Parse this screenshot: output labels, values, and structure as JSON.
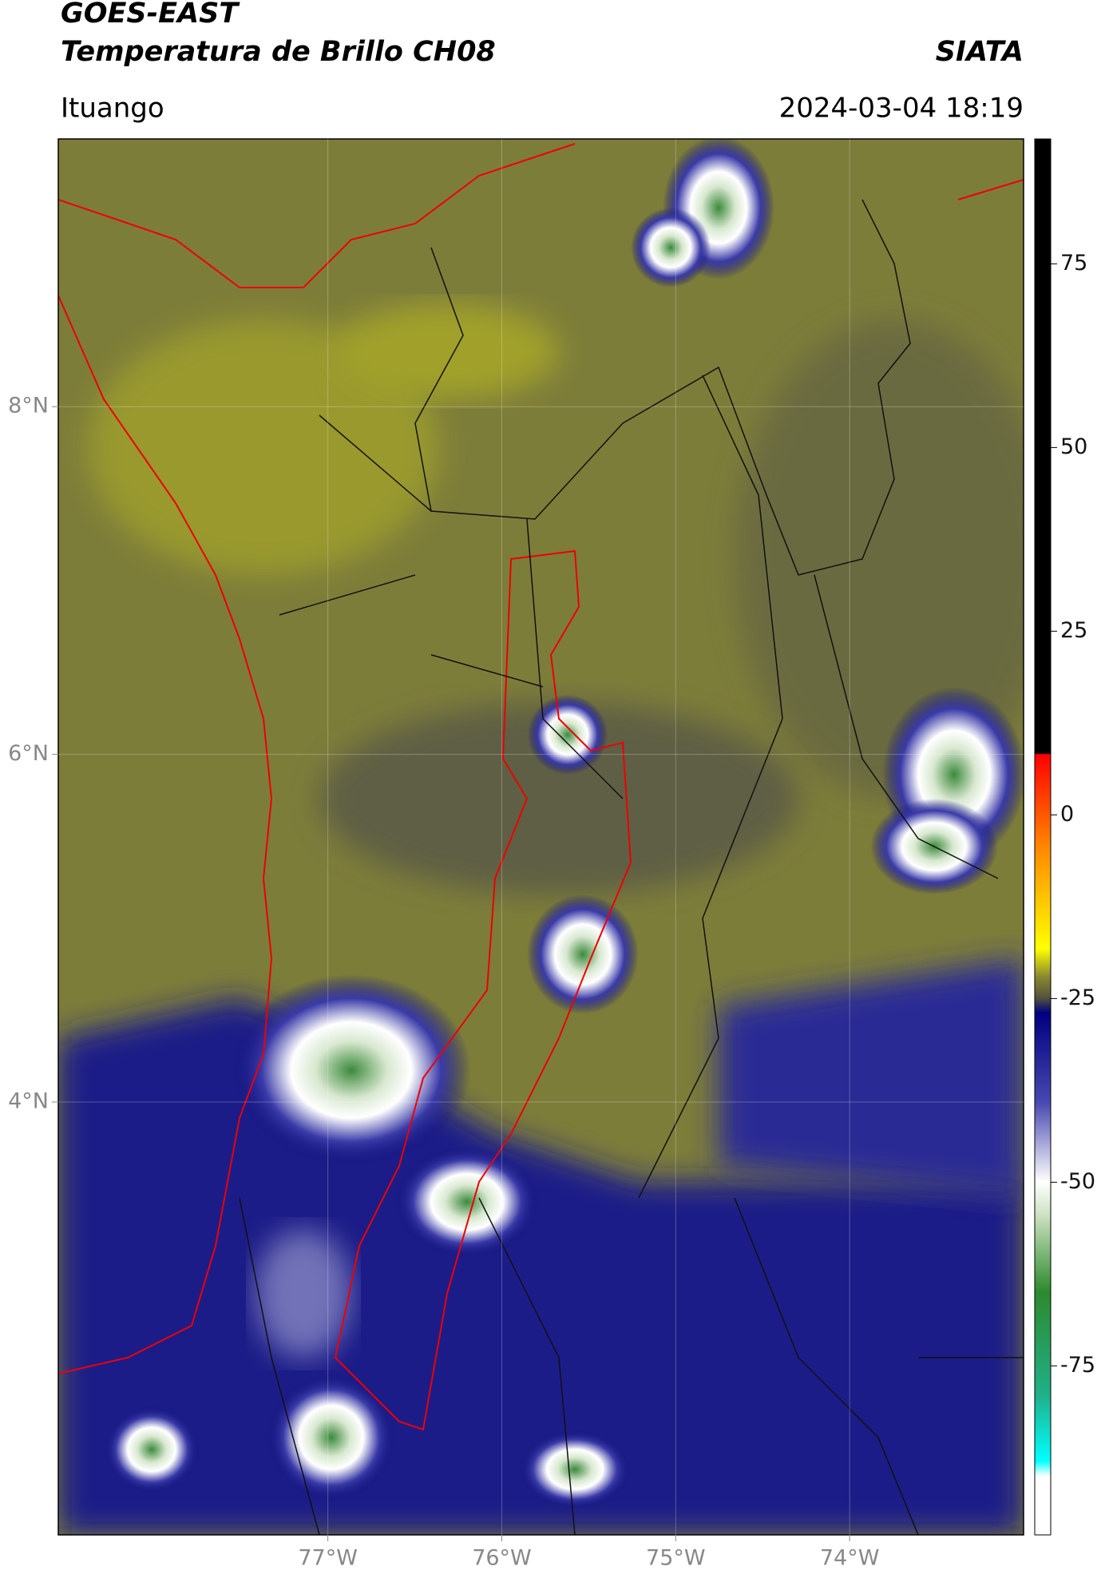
{
  "title": "GOES-EAST",
  "subtitle": "Temperatura de Brillo CH08",
  "source": "SIATA",
  "region": "Ituango",
  "datetime": "2024-03-04 18:19",
  "map": {
    "xlim": [
      -78.55,
      -73.0
    ],
    "ylim": [
      1.51,
      9.54
    ],
    "xticks": [
      {
        "value": -77,
        "label": "77°W"
      },
      {
        "value": -76,
        "label": "76°W"
      },
      {
        "value": -75,
        "label": "75°W"
      },
      {
        "value": -74,
        "label": "74°W"
      }
    ],
    "yticks": [
      {
        "value": 8,
        "label": "8°N"
      },
      {
        "value": 6,
        "label": "6°N"
      },
      {
        "value": 4,
        "label": "4°N"
      }
    ],
    "grid": true
  },
  "colorbar": {
    "lim": [
      -98,
      92
    ],
    "ticks": [
      75,
      50,
      25,
      0,
      -25,
      -50,
      -75
    ]
  }
}
